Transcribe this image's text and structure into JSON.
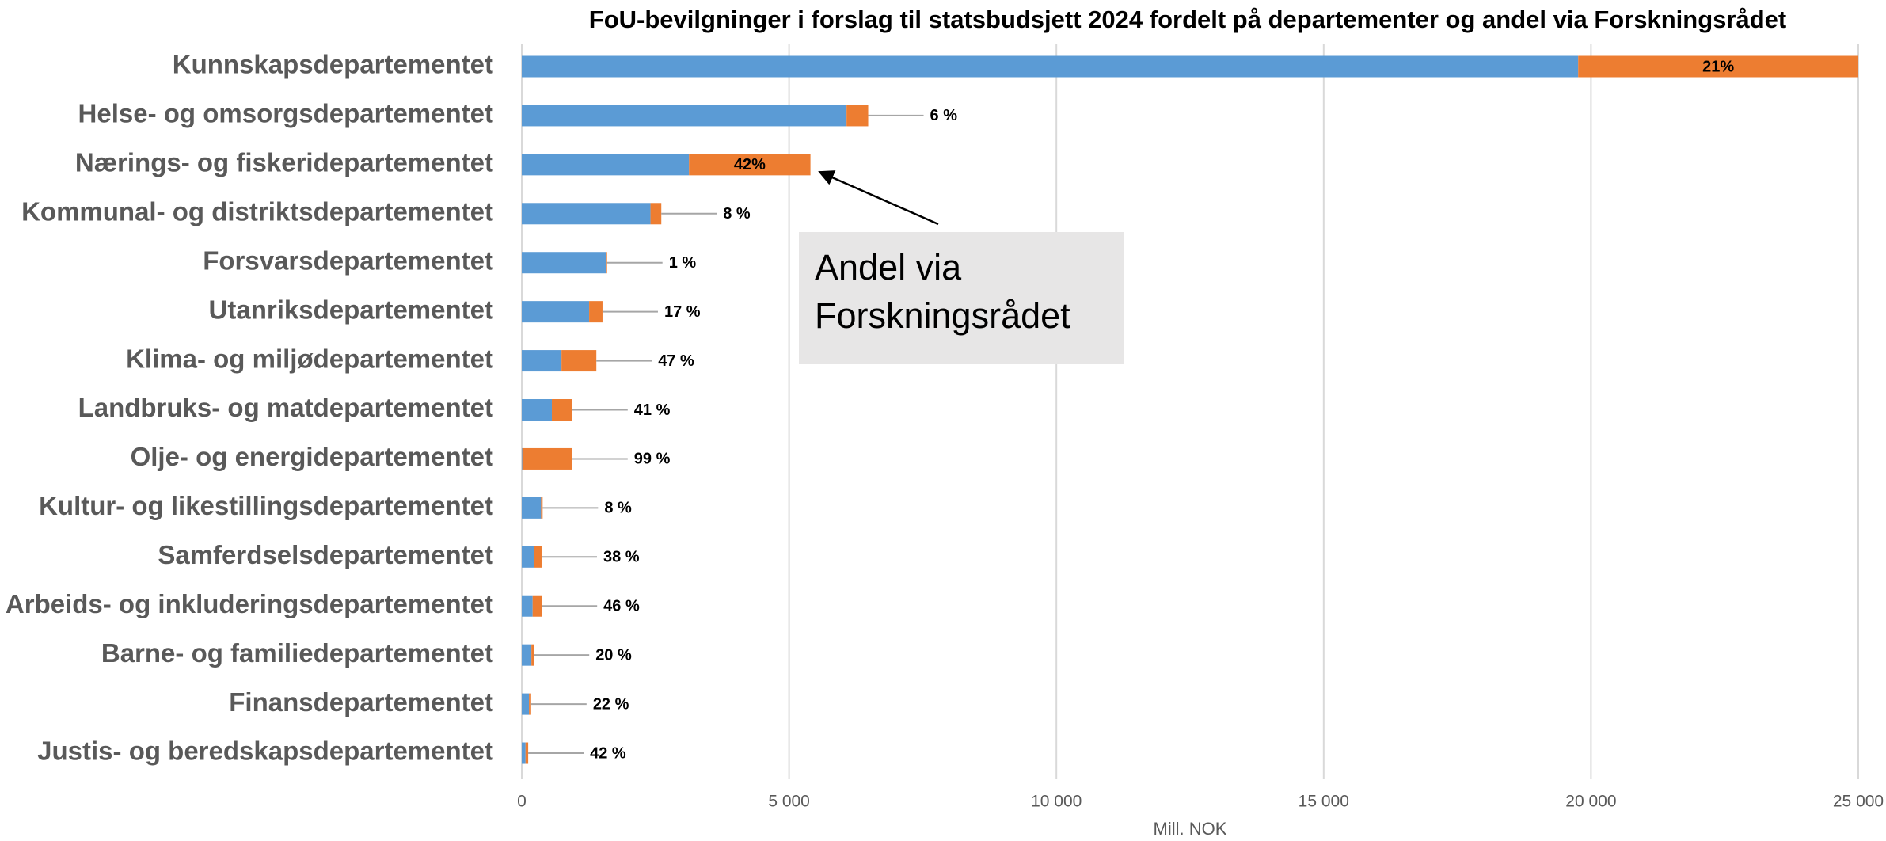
{
  "chart_data": {
    "type": "stacked-bar-horizontal",
    "title": "FoU-bevilgninger i forslag til statsbudsjett 2024 fordelt på departementer og andel via Forskningsrådet",
    "x_label": "Mill. NOK",
    "annotation": "Andel via Forskningsrådet",
    "categories": [
      "Kunnskapsdepartementet",
      "Helse- og omsorgsdepartementet",
      "Nærings- og fiskeridepartementet",
      "Kommunal- og distriktsdepartementet",
      "Forsvarsdepartementet",
      "Utanriksdepartementet",
      "Klima- og miljødepartementet",
      "Landbruks- og matdepartementet",
      "Olje- og energidepartementet",
      "Kultur- og likestillingsdepartementet",
      "Samferdselsdepartementet",
      "Arbeids- og inkluderingsdepartementet",
      "Barne- og familiedepartementet",
      "Finansdepartementet",
      "Justis- og beredskapsdepartementet"
    ],
    "series": [
      {
        "color": "#5b9bd5",
        "values": [
          19760,
          6075,
          3128,
          2408,
          1575,
          1260,
          743,
          563,
          10,
          360,
          225,
          203,
          180,
          135,
          70
        ]
      },
      {
        "color": "#ed7d31",
        "values": [
          5240,
          405,
          2272,
          202,
          20,
          250,
          652,
          382,
          935,
          30,
          145,
          170,
          45,
          40,
          50
        ],
        "percent_labels": [
          "21%",
          "6 %",
          "42%",
          "8 %",
          "1 %",
          "17 %",
          "47 %",
          "41 %",
          "99 %",
          "8 %",
          "38 %",
          "46 %",
          "20 %",
          "22 %",
          "42 %"
        ]
      }
    ],
    "xlim": [
      0,
      25000
    ],
    "xticks": [
      0,
      {
        "value": 5000,
        "label": "5 000"
      },
      {
        "value": 10000,
        "label": "10 000"
      },
      {
        "value": 15000,
        "label": "15 000"
      },
      {
        "value": 20000,
        "label": "20 000"
      },
      {
        "value": 25000,
        "label": "25 000"
      }
    ],
    "grid": true
  }
}
